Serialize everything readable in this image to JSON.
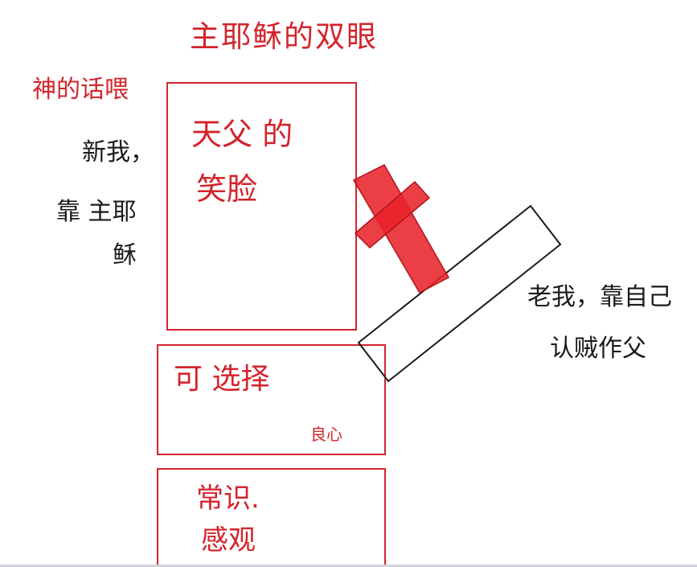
{
  "title": "主耶稣的双眼",
  "left_label_top": "神的话喂",
  "left_label_mid": "新我，",
  "left_label_bottom_lines": [
    "靠 主耶",
    "稣"
  ],
  "box_top_lines": [
    "天父 的",
    "笑脸"
  ],
  "box_middle_main": "可 选择",
  "box_middle_small": "良心",
  "box_bottom_lines": [
    "常识.",
    "感观"
  ],
  "right_label_lines": [
    "老我，靠自己",
    "认贼作父"
  ],
  "colors": {
    "ink_red": "#d3242c",
    "cross_red": "#e8232b",
    "ink_black": "#1a1a1a"
  }
}
